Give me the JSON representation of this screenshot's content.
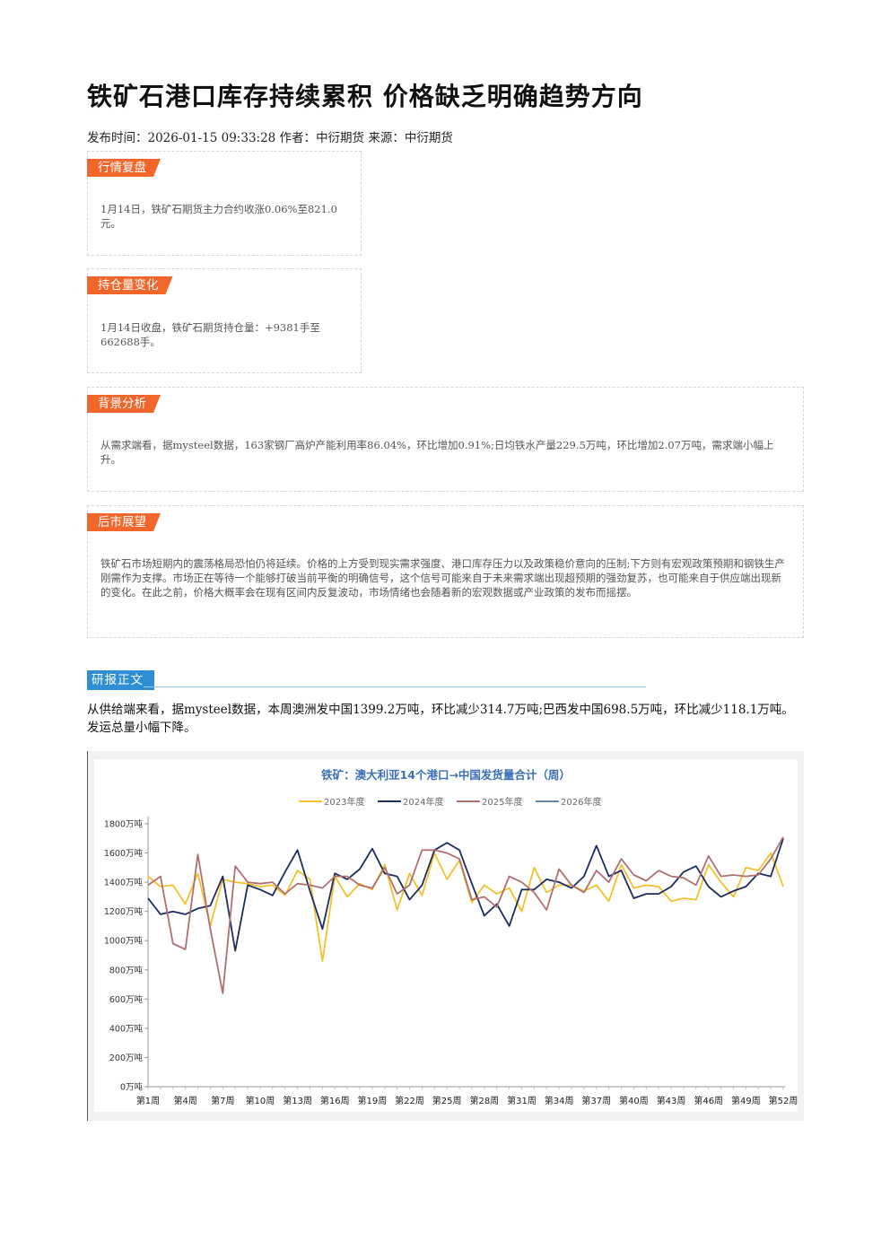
{
  "article": {
    "title": "铁矿石港口库存持续累积 价格缺乏明确趋势方向",
    "meta": {
      "publish_label": "发布时间：",
      "publish_time": "2026-01-15 09:33:28",
      "author_label": " 作者：",
      "author": "中衍期货",
      "source_label": " 来源：",
      "source": "中衍期货"
    }
  },
  "sections": [
    {
      "tag": "行情复盘",
      "text": "1月14日，铁矿石期货主力合约收涨0.06%至821.0元。"
    },
    {
      "tag": "持仓量变化",
      "text": "1月14日收盘，铁矿石期货持仓量：+9381手至662688手。"
    },
    {
      "tag": "背景分析",
      "text": "从需求端看，据mysteel数据，163家钢厂高炉产能利用率86.04%，环比增加0.91%;日均铁水产量229.5万吨，环比增加2.07万吨，需求端小幅上升。"
    },
    {
      "tag": "后市展望",
      "text": "铁矿石市场短期内的震荡格局恐怕仍将延续。价格的上方受到现实需求强度、港口库存压力以及政策稳价意向的压制;下方则有宏观政策预期和钢铁生产刚需作为支撑。市场正在等待一个能够打破当前平衡的明确信号，这个信号可能来自于未来需求端出现超预期的强劲复苏，也可能来自于供应端出现新的变化。在此之前，价格大概率会在现有区间内反复波动，市场情绪也会随着新的宏观数据或产业政策的发布而摇摆。"
    }
  ],
  "report": {
    "tag": "研报正文",
    "text": "从供给端来看，据mysteel数据，本周澳洲发中国1399.2万吨，环比减少314.7万吨;巴西发中国698.5万吨，环比减少118.1万吨。发运总量小幅下降。"
  },
  "chart_data": {
    "type": "line",
    "title": "铁矿：澳大利亚14个港口→中国发货量合计（周）",
    "ylim": [
      0,
      1800
    ],
    "y_ticks": [
      0,
      200,
      400,
      600,
      800,
      1000,
      1200,
      1400,
      1600,
      1800
    ],
    "y_tick_labels": [
      "0万吨",
      "200万吨",
      "400万吨",
      "600万吨",
      "800万吨",
      "1000万吨",
      "1200万吨",
      "1400万吨",
      "1600万吨",
      "1800万吨"
    ],
    "x_tick_weeks": [
      1,
      4,
      7,
      10,
      13,
      16,
      19,
      22,
      25,
      28,
      31,
      34,
      37,
      40,
      43,
      46,
      49,
      52
    ],
    "x_tick_labels": [
      "第1周",
      "第4周",
      "第7周",
      "第10周",
      "第13周",
      "第16周",
      "第19周",
      "第22周",
      "第25周",
      "第28周",
      "第31周",
      "第34周",
      "第37周",
      "第40周",
      "第43周",
      "第46周",
      "第49周",
      "第52周"
    ],
    "legend_position": "top",
    "series": [
      {
        "name": "2023年度",
        "color": "#f2c12e",
        "values": [
          1440,
          1370,
          1380,
          1250,
          1460,
          1100,
          1420,
          1400,
          1390,
          1370,
          1380,
          1310,
          1480,
          1420,
          860,
          1440,
          1300,
          1390,
          1350,
          1520,
          1210,
          1460,
          1310,
          1600,
          1420,
          1550,
          1260,
          1380,
          1320,
          1360,
          1200,
          1500,
          1330,
          1380,
          1380,
          1340,
          1380,
          1270,
          1520,
          1360,
          1380,
          1370,
          1270,
          1290,
          1280,
          1520,
          1400,
          1300,
          1500,
          1480,
          1600,
          1370
        ]
      },
      {
        "name": "2024年度",
        "color": "#1c2d5e",
        "values": [
          1290,
          1180,
          1200,
          1180,
          1220,
          1240,
          1440,
          930,
          1380,
          1350,
          1310,
          1470,
          1620,
          1340,
          1080,
          1460,
          1420,
          1490,
          1630,
          1460,
          1440,
          1280,
          1380,
          1620,
          1670,
          1620,
          1390,
          1170,
          1250,
          1100,
          1350,
          1350,
          1420,
          1400,
          1360,
          1440,
          1650,
          1440,
          1480,
          1290,
          1320,
          1320,
          1370,
          1470,
          1510,
          1370,
          1300,
          1340,
          1370,
          1460,
          1440,
          1700
        ]
      },
      {
        "name": "2025年度",
        "color": "#b07070",
        "values": [
          1380,
          1440,
          980,
          940,
          1590,
          1080,
          640,
          1510,
          1400,
          1390,
          1400,
          1320,
          1390,
          1380,
          1360,
          1440,
          1440,
          1380,
          1360,
          1500,
          1320,
          1380,
          1620,
          1620,
          1600,
          1560,
          1280,
          1300,
          1230,
          1440,
          1400,
          1330,
          1210,
          1490,
          1380,
          1330,
          1480,
          1400,
          1560,
          1450,
          1410,
          1480,
          1440,
          1430,
          1380,
          1580,
          1440,
          1450,
          1440,
          1450,
          1560,
          1710
        ]
      },
      {
        "name": "2026年度",
        "color": "#6a86a8",
        "values": []
      }
    ]
  }
}
